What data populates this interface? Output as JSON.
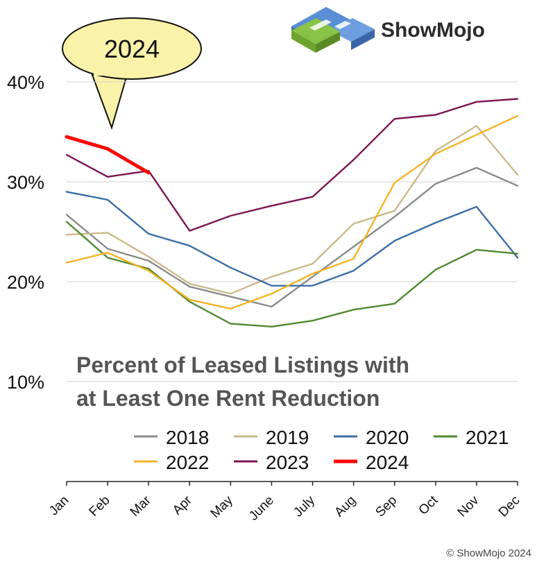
{
  "brand": {
    "name": "ShowMojo",
    "copyright": "© ShowMojo 2024"
  },
  "callout": {
    "label": "2024"
  },
  "colors": {
    "2018": "#8a8a8a",
    "2019": "#c9b98a",
    "2020": "#3b6ea5",
    "2021": "#4e8a2e",
    "2022": "#f5b323",
    "2023": "#7a1450",
    "2024": "#ff0000",
    "grid": "#cfcfcf",
    "title": "#555555",
    "callout_fill": "#faf2a8"
  },
  "chart_data": {
    "type": "line",
    "title": "Percent of Leased Listings with at Least One Rent Reduction",
    "title_lines": [
      "Percent of Leased Listings with",
      "at Least One Rent Reduction"
    ],
    "categories": [
      "Jan",
      "Feb",
      "Mar",
      "Apr",
      "May",
      "June",
      "July",
      "Aug",
      "Sep",
      "Oct",
      "Nov",
      "Dec"
    ],
    "yticks": [
      "10%",
      "20%",
      "30%",
      "40%"
    ],
    "ylim": [
      0,
      40
    ],
    "grid": true,
    "legend_position": "bottom-right",
    "series": [
      {
        "name": "2018",
        "values": [
          26.7,
          23.3,
          22.1,
          19.5,
          18.5,
          17.5,
          20.5,
          23.5,
          26.5,
          29.8,
          31.4,
          29.6
        ]
      },
      {
        "name": "2019",
        "values": [
          24.7,
          24.9,
          22.5,
          19.8,
          18.8,
          20.5,
          21.8,
          25.8,
          27.1,
          33.1,
          35.6,
          30.7
        ]
      },
      {
        "name": "2020",
        "values": [
          29.0,
          28.2,
          24.8,
          23.6,
          21.4,
          19.6,
          19.6,
          21.1,
          24.1,
          25.9,
          27.5,
          22.4
        ]
      },
      {
        "name": "2021",
        "values": [
          26.0,
          22.4,
          21.3,
          18.0,
          15.8,
          15.5,
          16.1,
          17.2,
          17.8,
          21.2,
          23.2,
          22.8
        ]
      },
      {
        "name": "2022",
        "values": [
          21.9,
          22.9,
          21.1,
          18.2,
          17.3,
          18.8,
          20.8,
          22.3,
          29.9,
          32.8,
          34.7,
          36.6
        ]
      },
      {
        "name": "2023",
        "values": [
          32.7,
          30.5,
          31.1,
          25.1,
          26.6,
          27.6,
          28.5,
          32.2,
          36.3,
          36.7,
          38.0,
          38.3
        ]
      },
      {
        "name": "2024",
        "values": [
          34.5,
          33.3,
          30.9,
          null,
          null,
          null,
          null,
          null,
          null,
          null,
          null,
          null
        ]
      }
    ]
  }
}
